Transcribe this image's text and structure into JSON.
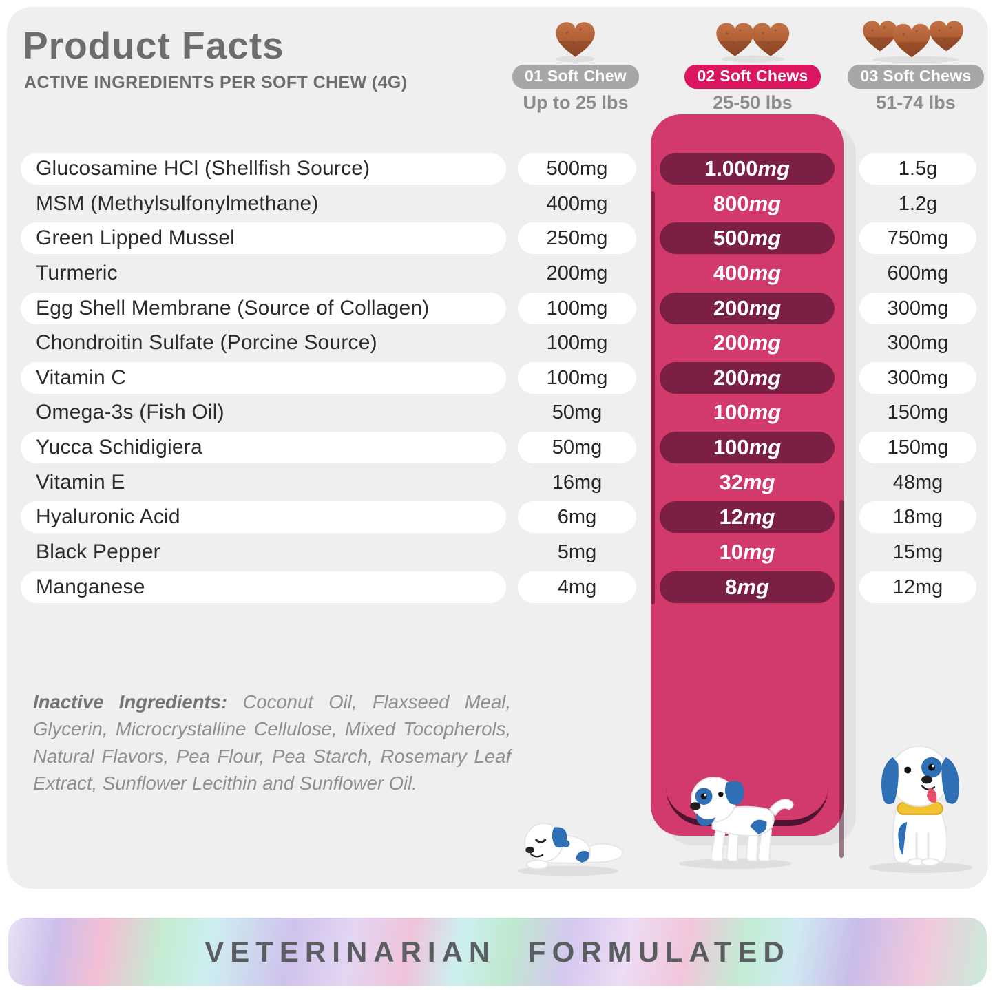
{
  "header": {
    "title": "Product Facts",
    "subtitle": "ACTIVE INGREDIENTS PER SOFT CHEW (4G)"
  },
  "dose_columns": [
    {
      "label": "01 Soft Chew",
      "weight": "Up to 25 lbs",
      "chews": 1,
      "accent": false
    },
    {
      "label": "02 Soft Chews",
      "weight": "25-50 lbs",
      "chews": 2,
      "accent": true
    },
    {
      "label": "03 Soft Chews",
      "weight": "51-74 lbs",
      "chews": 3,
      "accent": false
    }
  ],
  "ingredients": [
    {
      "name": "Glucosamine HCl (Shellfish Source)",
      "dose1": "500mg",
      "dose2": {
        "num": "1.000",
        "unit": "mg"
      },
      "dose3": "1.5g",
      "highlight": true
    },
    {
      "name": "MSM (Methylsulfonylmethane)",
      "dose1": "400mg",
      "dose2": {
        "num": "800",
        "unit": "mg"
      },
      "dose3": "1.2g",
      "highlight": false
    },
    {
      "name": "Green Lipped Mussel",
      "dose1": "250mg",
      "dose2": {
        "num": "500",
        "unit": "mg"
      },
      "dose3": "750mg",
      "highlight": true
    },
    {
      "name": "Turmeric",
      "dose1": "200mg",
      "dose2": {
        "num": "400",
        "unit": "mg"
      },
      "dose3": "600mg",
      "highlight": false
    },
    {
      "name": "Egg Shell Membrane (Source of Collagen)",
      "dose1": "100mg",
      "dose2": {
        "num": "200",
        "unit": "mg"
      },
      "dose3": "300mg",
      "highlight": true
    },
    {
      "name": "Chondroitin Sulfate (Porcine Source)",
      "dose1": "100mg",
      "dose2": {
        "num": "200",
        "unit": "mg"
      },
      "dose3": "300mg",
      "highlight": false
    },
    {
      "name": "Vitamin C",
      "dose1": "100mg",
      "dose2": {
        "num": "200",
        "unit": "mg"
      },
      "dose3": "300mg",
      "highlight": true
    },
    {
      "name": "Omega-3s (Fish Oil)",
      "dose1": "50mg",
      "dose2": {
        "num": "100",
        "unit": "mg"
      },
      "dose3": "150mg",
      "highlight": false
    },
    {
      "name": "Yucca Schidigiera",
      "dose1": "50mg",
      "dose2": {
        "num": "100",
        "unit": "mg"
      },
      "dose3": "150mg",
      "highlight": true
    },
    {
      "name": "Vitamin E",
      "dose1": "16mg",
      "dose2": {
        "num": "32",
        "unit": "mg"
      },
      "dose3": "48mg",
      "highlight": false
    },
    {
      "name": "Hyaluronic Acid",
      "dose1": "6mg",
      "dose2": {
        "num": "12",
        "unit": "mg"
      },
      "dose3": "18mg",
      "highlight": true
    },
    {
      "name": "Black Pepper",
      "dose1": "5mg",
      "dose2": {
        "num": "10",
        "unit": "mg"
      },
      "dose3": "15mg",
      "highlight": false
    },
    {
      "name": "Manganese",
      "dose1": "4mg",
      "dose2": {
        "num": "8",
        "unit": "mg"
      },
      "dose3": "12mg",
      "highlight": true
    }
  ],
  "inactive_ingredients": {
    "label": "Inactive Ingredients:",
    "text": "Coconut Oil, Flaxseed Meal, Glycerin, Microcrystalline Cellulose, Mixed Tocopherols, Natural Flavors, Pea Flour, Pea Starch, Rosemary Leaf Extract, Sunflower Lecithin and Sunflower Oil."
  },
  "footer": {
    "banner_text": "VETERINARIAN FORMULATED"
  },
  "colors": {
    "band_pink": "#d13a6a",
    "deep_maroon_pill": "#7b1f44",
    "header_pill_gray": "#a7a7a7",
    "header_pill_pink": "#d9165f",
    "chew_brown_top": "#c47347",
    "chew_brown_bottom": "#8a4526",
    "dog_blue": "#2e6fb5",
    "collar_yellow": "#f2c230",
    "panel_gray": "#efeff0"
  }
}
